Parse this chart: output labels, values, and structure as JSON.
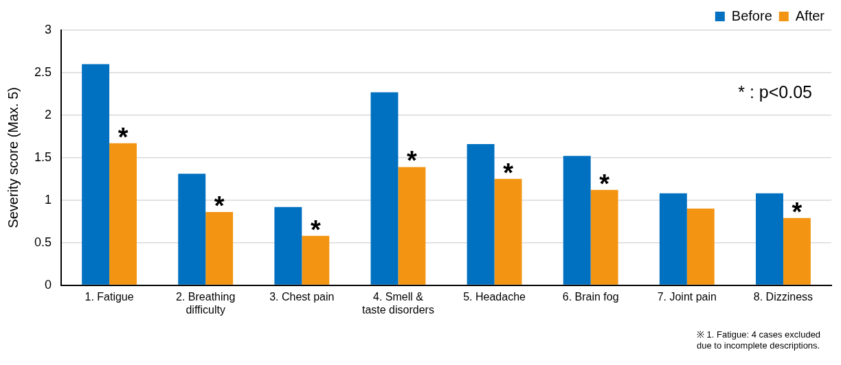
{
  "chart_data": {
    "type": "bar",
    "ylabel": "Severity score (Max. 5)",
    "categories": [
      "1. Fatigue",
      "2. Breathing difficulty",
      "3. Chest pain",
      "4. Smell & taste disorders",
      "5. Headache",
      "6. Brain fog",
      "7. Joint pain",
      "8. Dizziness"
    ],
    "series": [
      {
        "name": "Before",
        "color": "#0070c0",
        "values": [
          2.6,
          1.31,
          0.92,
          2.27,
          1.66,
          1.52,
          1.08,
          1.08
        ]
      },
      {
        "name": "After",
        "color": "#f39512",
        "values": [
          1.67,
          0.86,
          0.58,
          1.39,
          1.25,
          1.12,
          0.9,
          0.79
        ]
      }
    ],
    "ylim": [
      0,
      3
    ],
    "yticks": [
      0,
      0.5,
      1,
      1.5,
      2,
      2.5,
      3
    ],
    "grid": "y",
    "legend": "top right",
    "annotations": [
      {
        "text": "*",
        "x": "1. Fatigue",
        "y": 1.67
      },
      {
        "text": "*",
        "x": "2. Breathing difficulty",
        "y": 0.86
      },
      {
        "text": "*",
        "x": "3. Chest pain",
        "y": 0.58
      },
      {
        "text": "*",
        "x": "4. Smell & taste disorders",
        "y": 1.39
      },
      {
        "text": "*",
        "x": "5. Headache",
        "y": 1.25
      },
      {
        "text": "*",
        "x": "6. Brain fog",
        "y": 1.12
      },
      {
        "text": "*",
        "x": "8. Dizziness",
        "y": 0.79
      },
      "* : p<0.05",
      "※ 1. Fatigue: 4 cases excluded due to incomplete descriptions."
    ]
  }
}
